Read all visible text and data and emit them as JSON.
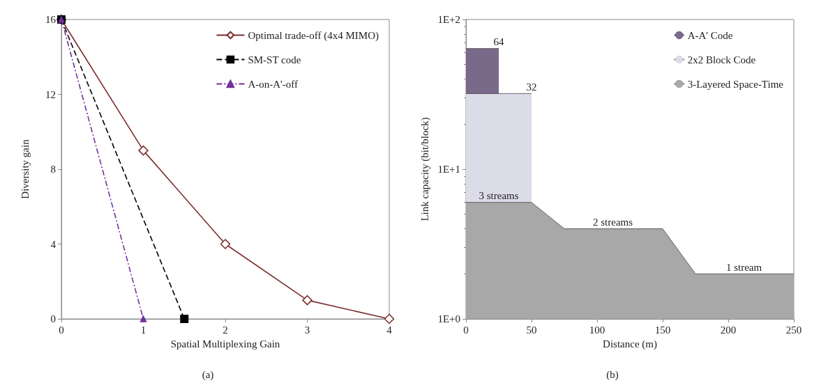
{
  "chart_data": [
    {
      "type": "line",
      "xlabel": "Spatial Multiplexing Gain",
      "ylabel": "Diversity gain",
      "xlim": [
        0,
        4
      ],
      "xticks": [
        0,
        1,
        2,
        3,
        4
      ],
      "ylim": [
        0,
        16
      ],
      "yticks": [
        0,
        4,
        8,
        12,
        16
      ],
      "grid": false,
      "legend": "top right",
      "annotations": [
        "(a)"
      ],
      "series": [
        {
          "name": "Optimal trade-off (4x4 MIMO)",
          "color": "#7b2c2c",
          "x": [
            0,
            1,
            2,
            3,
            4
          ],
          "values": [
            16,
            9,
            4,
            1,
            0
          ],
          "marker": "diamond",
          "line_style": "solid"
        },
        {
          "name": "SM-ST code",
          "color": "#000000",
          "x": [
            0,
            1.5
          ],
          "values": [
            16,
            0
          ],
          "marker": "square",
          "line_style": "dashed"
        },
        {
          "name": "A-on-A'-off",
          "color": "#7030a0",
          "x": [
            0,
            1
          ],
          "values": [
            16,
            0
          ],
          "marker": "triangle",
          "line_style": "dashdot"
        }
      ]
    },
    {
      "type": "area",
      "xlabel": "Distance (m)",
      "ylabel": "Link capacity (bit/block)",
      "xlim": [
        0,
        250
      ],
      "xticks": [
        0,
        50,
        100,
        150,
        200,
        250
      ],
      "ylim": [
        1,
        100
      ],
      "yticks": [
        {
          "value": 1,
          "label": "1E+0"
        },
        {
          "value": 10,
          "label": "1E+1"
        },
        {
          "value": 100,
          "label": "1E+2"
        }
      ],
      "log": "y",
      "grid": false,
      "legend": "top right",
      "annotations": [
        {
          "text": "64",
          "x": 25,
          "y": 64
        },
        {
          "text": "32",
          "x": 50,
          "y": 32
        },
        {
          "text": "3 streams",
          "x": 25,
          "y": 6
        },
        {
          "text": "2 streams",
          "x": 112,
          "y": 4
        },
        {
          "text": "1 stream",
          "x": 212,
          "y": 2
        },
        "(b)"
      ],
      "series": [
        {
          "name": "A-A' Code",
          "color": "#7a6a8a",
          "x": [
            0,
            25
          ],
          "values": [
            64,
            64
          ]
        },
        {
          "name": "2x2 Block Code",
          "color": "#dcdce8",
          "x": [
            0,
            50
          ],
          "values": [
            32,
            32
          ]
        },
        {
          "name": "3-Layered Space-Time",
          "color": "#a8a8a8",
          "x": [
            0,
            50,
            75,
            150,
            175,
            250
          ],
          "values": [
            6,
            6,
            4,
            4,
            2,
            2
          ]
        }
      ]
    }
  ]
}
